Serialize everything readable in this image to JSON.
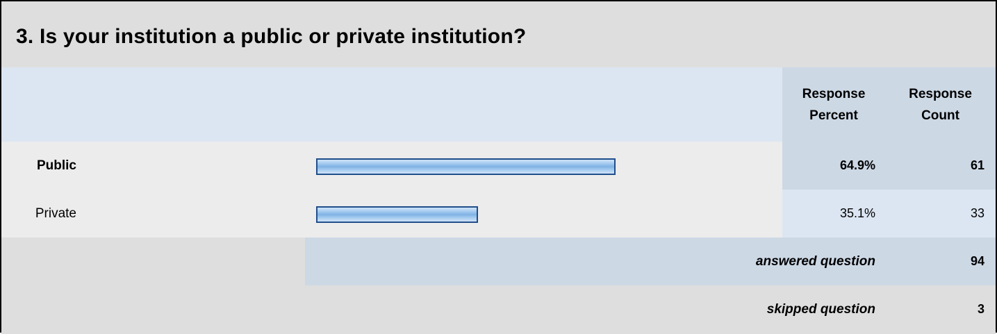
{
  "question": {
    "title": "3. Is your institution a public or private institution?"
  },
  "table": {
    "header": {
      "percent_line1": "Response",
      "percent_line2": "Percent",
      "count_line1": "Response",
      "count_line2": "Count"
    },
    "summary": {
      "answered_label": "answered question",
      "answered_value": "94",
      "skipped_label": "skipped question",
      "skipped_value": "3"
    }
  },
  "chart_data": {
    "type": "bar",
    "orientation": "horizontal",
    "categories": [
      "Public",
      "Private"
    ],
    "values": [
      64.9,
      35.1
    ],
    "value_labels": [
      "64.9%",
      "35.1%"
    ],
    "counts": [
      "61",
      "33"
    ],
    "xlim": [
      0,
      100
    ],
    "bar_color": "#7fb2e4",
    "bar_border_color": "#1f4e8a"
  }
}
